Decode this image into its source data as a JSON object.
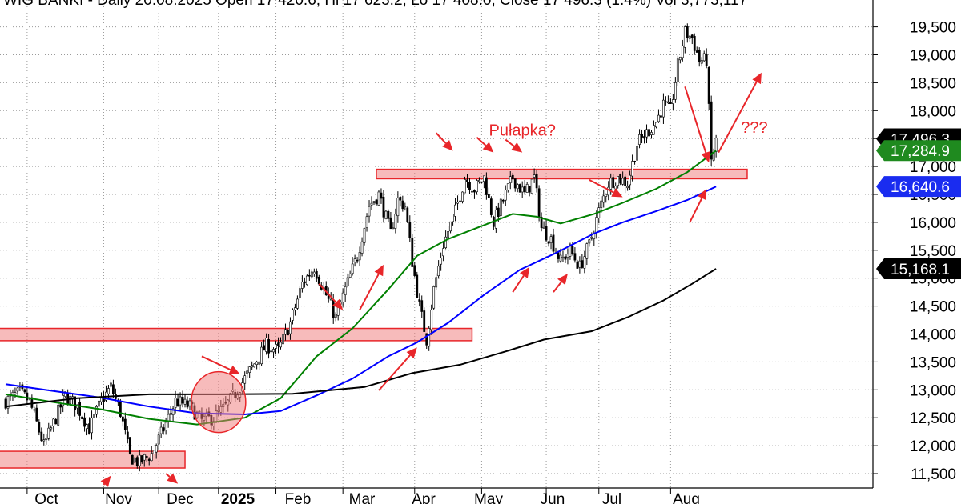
{
  "header": {
    "text": "WIG BANKI - Daily 20.08.2025 Open 17 420.6, Hi 17 623.2, Lo 17 408.0, Close 17 496.3 (1.4%) Vol 3,773,117"
  },
  "chart_data": {
    "type": "candlestick",
    "ylim": [
      11300,
      19750
    ],
    "y_ticks": [
      11500,
      12000,
      12500,
      13000,
      13500,
      14000,
      14500,
      15000,
      15500,
      16000,
      16500,
      17000,
      17500,
      18000,
      18500,
      19000,
      19500
    ],
    "y_tick_labels": [
      "11,500",
      "12,000",
      "12,500",
      "13,000",
      "13,500",
      "14,000",
      "14,500",
      "15,000",
      "15,500",
      "16,000",
      "16,500",
      "17,000",
      "17,500",
      "18,000",
      "18,500",
      "19,000",
      "19,500"
    ],
    "x_months": [
      {
        "label": "Oct",
        "bold": false
      },
      {
        "label": "Nov",
        "bold": false
      },
      {
        "label": "Dec",
        "bold": false
      },
      {
        "label": "2025",
        "bold": true
      },
      {
        "label": "Feb",
        "bold": false
      },
      {
        "label": "Mar",
        "bold": false
      },
      {
        "label": "Apr",
        "bold": false
      },
      {
        "label": "May",
        "bold": false
      },
      {
        "label": "Jun",
        "bold": false
      },
      {
        "label": "Jul",
        "bold": false
      },
      {
        "label": "Aug",
        "bold": false
      }
    ],
    "price_path": [
      {
        "d": 0,
        "v": 12800
      },
      {
        "d": 6,
        "v": 12950
      },
      {
        "d": 10,
        "v": 12800
      },
      {
        "d": 16,
        "v": 12000
      },
      {
        "d": 20,
        "v": 12400
      },
      {
        "d": 25,
        "v": 12900
      },
      {
        "d": 30,
        "v": 12700
      },
      {
        "d": 35,
        "v": 12300
      },
      {
        "d": 40,
        "v": 12800
      },
      {
        "d": 44,
        "v": 13050
      },
      {
        "d": 48,
        "v": 12600
      },
      {
        "d": 52,
        "v": 11800
      },
      {
        "d": 56,
        "v": 11700
      },
      {
        "d": 61,
        "v": 11850
      },
      {
        "d": 66,
        "v": 12300
      },
      {
        "d": 71,
        "v": 12800
      },
      {
        "d": 77,
        "v": 12700
      },
      {
        "d": 82,
        "v": 12450
      },
      {
        "d": 87,
        "v": 12500
      },
      {
        "d": 92,
        "v": 12700
      },
      {
        "d": 97,
        "v": 13000
      },
      {
        "d": 103,
        "v": 13400
      },
      {
        "d": 109,
        "v": 13800
      },
      {
        "d": 114,
        "v": 13700
      },
      {
        "d": 119,
        "v": 14200
      },
      {
        "d": 124,
        "v": 14900
      },
      {
        "d": 129,
        "v": 15200
      },
      {
        "d": 134,
        "v": 14700
      },
      {
        "d": 138,
        "v": 14300
      },
      {
        "d": 142,
        "v": 14800
      },
      {
        "d": 147,
        "v": 15400
      },
      {
        "d": 152,
        "v": 16300
      },
      {
        "d": 156,
        "v": 16500
      },
      {
        "d": 161,
        "v": 15800
      },
      {
        "d": 164,
        "v": 16400
      },
      {
        "d": 167,
        "v": 16300
      },
      {
        "d": 170,
        "v": 15300
      },
      {
        "d": 173,
        "v": 14500
      },
      {
        "d": 176,
        "v": 13900
      },
      {
        "d": 179,
        "v": 14800
      },
      {
        "d": 183,
        "v": 15600
      },
      {
        "d": 188,
        "v": 16200
      },
      {
        "d": 192,
        "v": 16800
      },
      {
        "d": 196,
        "v": 16600
      },
      {
        "d": 200,
        "v": 16800
      },
      {
        "d": 204,
        "v": 16000
      },
      {
        "d": 208,
        "v": 16400
      },
      {
        "d": 212,
        "v": 16800
      },
      {
        "d": 217,
        "v": 16500
      },
      {
        "d": 221,
        "v": 16800
      },
      {
        "d": 224,
        "v": 15900
      },
      {
        "d": 228,
        "v": 15700
      },
      {
        "d": 232,
        "v": 15300
      },
      {
        "d": 236,
        "v": 15500
      },
      {
        "d": 240,
        "v": 15200
      },
      {
        "d": 244,
        "v": 15600
      },
      {
        "d": 248,
        "v": 16200
      },
      {
        "d": 252,
        "v": 16700
      },
      {
        "d": 256,
        "v": 16800
      },
      {
        "d": 260,
        "v": 16700
      },
      {
        "d": 264,
        "v": 17400
      },
      {
        "d": 268,
        "v": 17600
      },
      {
        "d": 272,
        "v": 17800
      },
      {
        "d": 275,
        "v": 18100
      },
      {
        "d": 278,
        "v": 18000
      },
      {
        "d": 281,
        "v": 18800
      },
      {
        "d": 284,
        "v": 19400
      },
      {
        "d": 287,
        "v": 19300
      },
      {
        "d": 290,
        "v": 18900
      },
      {
        "d": 293,
        "v": 18900
      },
      {
        "d": 295,
        "v": 17100
      },
      {
        "d": 297,
        "v": 17450
      }
    ],
    "series": [
      {
        "color": "#008000",
        "points": [
          {
            "d": 0,
            "v": 12920
          },
          {
            "d": 20,
            "v": 12780
          },
          {
            "d": 40,
            "v": 12650
          },
          {
            "d": 60,
            "v": 12480
          },
          {
            "d": 80,
            "v": 12380
          },
          {
            "d": 100,
            "v": 12500
          },
          {
            "d": 115,
            "v": 12850
          },
          {
            "d": 130,
            "v": 13600
          },
          {
            "d": 145,
            "v": 14100
          },
          {
            "d": 160,
            "v": 14800
          },
          {
            "d": 172,
            "v": 15400
          },
          {
            "d": 185,
            "v": 15700
          },
          {
            "d": 200,
            "v": 15950
          },
          {
            "d": 212,
            "v": 16150
          },
          {
            "d": 222,
            "v": 16100
          },
          {
            "d": 232,
            "v": 15980
          },
          {
            "d": 246,
            "v": 16150
          },
          {
            "d": 258,
            "v": 16350
          },
          {
            "d": 272,
            "v": 16600
          },
          {
            "d": 285,
            "v": 16900
          },
          {
            "d": 297,
            "v": 17284.9
          }
        ]
      },
      {
        "color": "#0000ff",
        "points": [
          {
            "d": 0,
            "v": 13100
          },
          {
            "d": 20,
            "v": 12980
          },
          {
            "d": 40,
            "v": 12860
          },
          {
            "d": 60,
            "v": 12700
          },
          {
            "d": 80,
            "v": 12580
          },
          {
            "d": 100,
            "v": 12560
          },
          {
            "d": 115,
            "v": 12620
          },
          {
            "d": 130,
            "v": 12900
          },
          {
            "d": 145,
            "v": 13200
          },
          {
            "d": 160,
            "v": 13600
          },
          {
            "d": 172,
            "v": 13850
          },
          {
            "d": 185,
            "v": 14200
          },
          {
            "d": 200,
            "v": 14700
          },
          {
            "d": 215,
            "v": 15150
          },
          {
            "d": 230,
            "v": 15450
          },
          {
            "d": 246,
            "v": 15800
          },
          {
            "d": 258,
            "v": 16000
          },
          {
            "d": 272,
            "v": 16200
          },
          {
            "d": 285,
            "v": 16400
          },
          {
            "d": 297,
            "v": 16640.6
          }
        ]
      },
      {
        "color": "#000000",
        "points": [
          {
            "d": 0,
            "v": 12700
          },
          {
            "d": 30,
            "v": 12850
          },
          {
            "d": 60,
            "v": 12920
          },
          {
            "d": 90,
            "v": 12920
          },
          {
            "d": 120,
            "v": 12930
          },
          {
            "d": 150,
            "v": 13050
          },
          {
            "d": 170,
            "v": 13300
          },
          {
            "d": 190,
            "v": 13450
          },
          {
            "d": 210,
            "v": 13700
          },
          {
            "d": 225,
            "v": 13900
          },
          {
            "d": 245,
            "v": 14050
          },
          {
            "d": 260,
            "v": 14300
          },
          {
            "d": 275,
            "v": 14600
          },
          {
            "d": 287,
            "v": 14900
          },
          {
            "d": 297,
            "v": 15168.1
          }
        ]
      }
    ],
    "zones": [
      {
        "d0": -3,
        "d1": 75,
        "lo": 11600,
        "hi": 11900
      },
      {
        "d0": -3,
        "d1": 195,
        "lo": 13880,
        "hi": 14100
      },
      {
        "d0": 155,
        "d1": 310,
        "lo": 16780,
        "hi": 16950
      }
    ],
    "price_labels": [
      {
        "text": "17,496.3",
        "value": 17496.3,
        "bg": "#000000"
      },
      {
        "text": "17,284.9",
        "value": 17284.9,
        "bg": "#1f8a1f"
      },
      {
        "text": "16,640.6",
        "value": 16640.6,
        "bg": "#1a2cf0"
      },
      {
        "text": "15,168.1",
        "value": 15168.1,
        "bg": "#000000"
      }
    ],
    "annotations": [
      {
        "text": "Pułapka?",
        "d": 216,
        "v": 17550
      },
      {
        "text": "???",
        "d": 313,
        "v": 17600
      }
    ],
    "arrows": [
      {
        "d1": 41,
        "v1": 11300,
        "d2": 44,
        "v2": 11460
      },
      {
        "d1": 67,
        "v1": 11500,
        "d2": 72,
        "v2": 11320
      },
      {
        "d1": 82,
        "v1": 13600,
        "d2": 98,
        "v2": 13280
      },
      {
        "d1": 131,
        "v1": 14900,
        "d2": 141,
        "v2": 14430
      },
      {
        "d1": 148,
        "v1": 14430,
        "d2": 158,
        "v2": 15240
      },
      {
        "d1": 156,
        "v1": 12990,
        "d2": 172,
        "v2": 13760
      },
      {
        "d1": 180,
        "v1": 17600,
        "d2": 187,
        "v2": 17280
      },
      {
        "d1": 197,
        "v1": 17520,
        "d2": 204,
        "v2": 17250
      },
      {
        "d1": 209,
        "v1": 17480,
        "d2": 216,
        "v2": 17250
      },
      {
        "d1": 212,
        "v1": 14750,
        "d2": 219,
        "v2": 15200
      },
      {
        "d1": 229,
        "v1": 14750,
        "d2": 235,
        "v2": 15080
      },
      {
        "d1": 244,
        "v1": 16760,
        "d2": 258,
        "v2": 16450
      },
      {
        "d1": 284,
        "v1": 18430,
        "d2": 294,
        "v2": 17070
      },
      {
        "d1": 286,
        "v1": 16000,
        "d2": 293,
        "v2": 16600
      },
      {
        "d1": 298,
        "v1": 17250,
        "d2": 316,
        "v2": 18680
      }
    ],
    "circle": {
      "d": 89,
      "v": 12780,
      "rx": 34,
      "ry": 38
    }
  }
}
